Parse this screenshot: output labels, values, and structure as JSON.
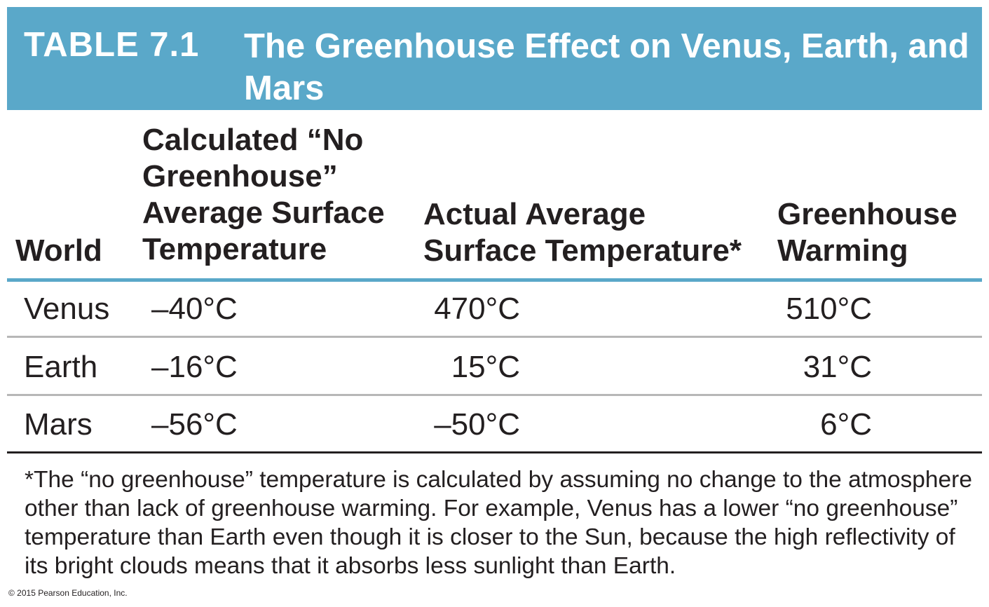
{
  "header": {
    "label": "TABLE 7.1",
    "title": "The Greenhouse Effect on Venus, Earth, and Mars"
  },
  "columns": {
    "world": "World",
    "no_greenhouse": "Calculated “No Greenhouse” Average Surface Temperature",
    "actual": "Actual Average Surface Temperature*",
    "warming": "Greenhouse Warming"
  },
  "rows": [
    {
      "world": "Venus",
      "no_greenhouse": "–40°C",
      "actual": "470°C",
      "warming": "510°C"
    },
    {
      "world": "Earth",
      "no_greenhouse": "–16°C",
      "actual": "15°C",
      "warming": "31°C"
    },
    {
      "world": "Mars",
      "no_greenhouse": "–56°C",
      "actual": "–50°C",
      "warming": "6°C"
    }
  ],
  "footnote": "*The “no greenhouse” temperature is calculated by assuming no change to the atmosphere other than lack of greenhouse warming. For example, Venus has a lower “no greenhouse” temperature than Earth even though it is closer to the Sun, because the high reflectivity of its bright clouds means that it absorbs less sunlight than Earth.",
  "copyright": "© 2015 Pearson Education, Inc.",
  "colors": {
    "header_background": "#5aa8c9",
    "header_text": "#ffffff",
    "body_text": "#231f20",
    "row_divider": "#b7b7b7"
  }
}
